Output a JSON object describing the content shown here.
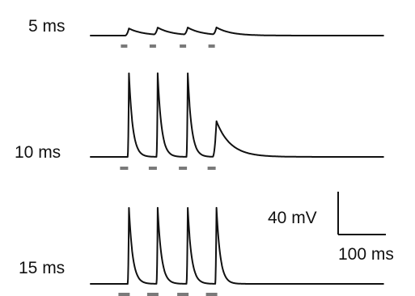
{
  "chart_data": {
    "type": "line",
    "traces": [
      {
        "label": "5 ms",
        "baseline": 0,
        "stimulus_count": 4,
        "peak_times_ms": [
          15,
          60,
          107,
          152
        ],
        "peak_amplitudes_mv": [
          16,
          16,
          16,
          16
        ]
      },
      {
        "label": "10 ms",
        "baseline": 0,
        "stimulus_count": 4,
        "peak_times_ms": [
          15,
          60,
          107,
          152
        ],
        "peak_amplitudes_mv": [
          47,
          47,
          47,
          20
        ]
      },
      {
        "label": "15 ms",
        "baseline": 0,
        "stimulus_count": 4,
        "peak_times_ms": [
          15,
          60,
          107,
          152
        ],
        "peak_amplitudes_mv": [
          47,
          47,
          47,
          47
        ]
      }
    ],
    "scale_bar": {
      "voltage_label": "40 mV",
      "time_label": "100 ms"
    }
  }
}
